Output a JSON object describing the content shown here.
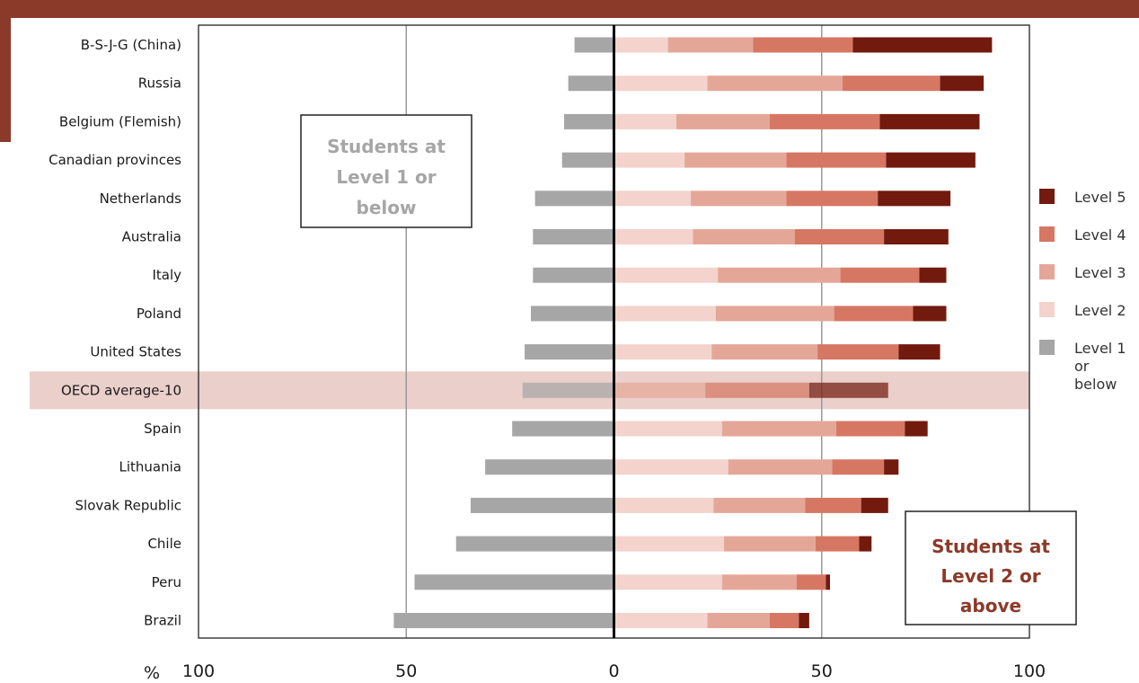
{
  "colors": {
    "banner": "#8b3a2a",
    "level1": "#a6a6a6",
    "level2": "#f3d3cc",
    "level3": "#e4a797",
    "level4": "#d67764",
    "level5": "#731a0e",
    "highlight": "#eacfca",
    "annotation_left": "#a6a6a6",
    "annotation_right": "#8b3a2a"
  },
  "annotations": {
    "left": [
      "Students at",
      "Level 1 or",
      "below"
    ],
    "right": [
      "Students at",
      "Level 2 or",
      "above"
    ]
  },
  "chart_data": {
    "type": "bar",
    "orientation": "horizontal",
    "stacked": true,
    "diverging": true,
    "unit_label": "%",
    "xlim": [
      -100,
      100
    ],
    "x_ticks": [
      {
        "value": -100,
        "label": "100"
      },
      {
        "value": -50,
        "label": "50"
      },
      {
        "value": 0,
        "label": "0"
      },
      {
        "value": 50,
        "label": "50"
      },
      {
        "value": 100,
        "label": "100"
      }
    ],
    "grid": "vertical at ±50",
    "legend_position": "right",
    "highlight_category": "OECD average-10",
    "categories": [
      "B-S-J-G (China)",
      "Russia",
      "Belgium (Flemish)",
      "Canadian provinces",
      "Netherlands",
      "Australia",
      "Italy",
      "Poland",
      "United States",
      "OECD average-10",
      "Spain",
      "Lithuania",
      "Slovak Republic",
      "Chile",
      "Peru",
      "Brazil"
    ],
    "series": [
      {
        "name": "Level 1 or below",
        "key": "level1",
        "side": "left",
        "values": [
          9.5,
          11,
          12,
          12.5,
          19,
          19.5,
          19.5,
          20,
          21.5,
          22,
          24.5,
          31,
          34.5,
          38,
          48,
          53
        ]
      },
      {
        "name": "Level 2",
        "key": "level2",
        "side": "right",
        "values": [
          13,
          22.5,
          15,
          17,
          18.5,
          19,
          25,
          24.5,
          23.5,
          0,
          26,
          27.5,
          24,
          26.5,
          26,
          22.5
        ]
      },
      {
        "name": "Level 3",
        "key": "level3",
        "side": "right",
        "values": [
          20.5,
          32.5,
          22.5,
          24.5,
          23,
          24.5,
          29.5,
          28.5,
          25.5,
          22,
          27.5,
          25,
          22,
          22,
          18,
          15
        ]
      },
      {
        "name": "Level 4",
        "key": "level4",
        "side": "right",
        "values": [
          24,
          23.5,
          26.5,
          24,
          22,
          21.5,
          19,
          19,
          19.5,
          25,
          16.5,
          12.5,
          13.5,
          10.5,
          7,
          7
        ]
      },
      {
        "name": "Level 5",
        "key": "level5",
        "side": "right",
        "values": [
          33.5,
          10.5,
          24,
          21.5,
          17.5,
          15.5,
          6.5,
          8,
          10,
          19,
          5.5,
          3.5,
          6.5,
          3,
          1,
          2.5
        ]
      }
    ],
    "legend_entries": [
      {
        "key": "level5",
        "label": [
          "Level 5"
        ]
      },
      {
        "key": "level4",
        "label": [
          "Level 4"
        ]
      },
      {
        "key": "level3",
        "label": [
          "Level 3"
        ]
      },
      {
        "key": "level2",
        "label": [
          "Level 2"
        ]
      },
      {
        "key": "level1",
        "label": [
          "Level 1",
          "or",
          "below"
        ]
      }
    ]
  }
}
